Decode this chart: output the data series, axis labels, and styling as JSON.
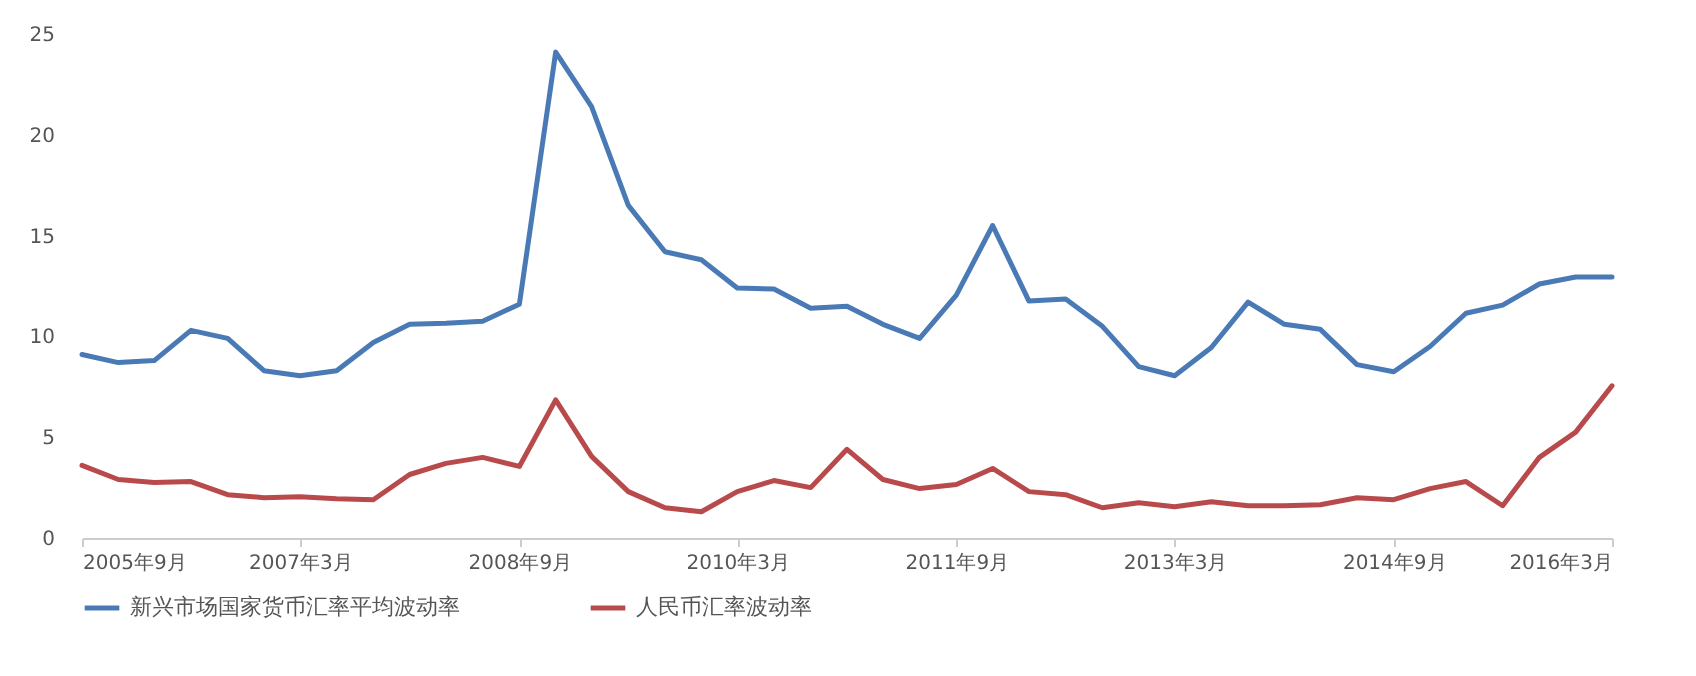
{
  "chart_data": {
    "type": "line",
    "x": [
      "2005-09",
      "2005-12",
      "2006-03",
      "2006-06",
      "2006-09",
      "2006-12",
      "2007-03",
      "2007-06",
      "2007-09",
      "2007-12",
      "2008-03",
      "2008-06",
      "2008-09",
      "2008-12",
      "2009-03",
      "2009-06",
      "2009-09",
      "2009-12",
      "2010-03",
      "2010-06",
      "2010-09",
      "2010-12",
      "2011-03",
      "2011-06",
      "2011-09",
      "2011-12",
      "2012-03",
      "2012-06",
      "2012-09",
      "2012-12",
      "2013-03",
      "2013-06",
      "2013-09",
      "2013-12",
      "2014-03",
      "2014-06",
      "2014-09",
      "2014-12",
      "2015-03",
      "2015-06",
      "2015-09",
      "2015-12",
      "2016-03"
    ],
    "series": [
      {
        "name": "新兴市场国家货币汇率平均波动率",
        "color": "#4a7ab5",
        "values": [
          9.1,
          8.7,
          8.8,
          10.3,
          9.9,
          8.3,
          8.05,
          8.3,
          9.7,
          10.6,
          10.65,
          10.75,
          11.6,
          24.1,
          21.4,
          16.5,
          14.2,
          13.8,
          12.4,
          12.35,
          11.4,
          11.5,
          10.6,
          9.9,
          12.05,
          15.5,
          11.75,
          11.85,
          10.5,
          8.5,
          8.05,
          9.45,
          11.7,
          10.6,
          10.35,
          8.6,
          8.25,
          9.5,
          11.15,
          11.55,
          12.6,
          12.95,
          12.95
        ]
      },
      {
        "name": "人民币汇率波动率",
        "color": "#b94a4c",
        "values": [
          3.6,
          2.9,
          2.75,
          2.8,
          2.15,
          2.0,
          2.05,
          1.95,
          1.9,
          3.15,
          3.7,
          4.0,
          3.55,
          6.85,
          4.05,
          2.3,
          1.5,
          1.3,
          2.3,
          2.85,
          2.5,
          4.4,
          2.9,
          2.45,
          2.65,
          3.45,
          2.3,
          2.15,
          1.5,
          1.75,
          1.55,
          1.8,
          1.6,
          1.6,
          1.65,
          2.0,
          1.9,
          2.45,
          2.8,
          1.6,
          4.0,
          5.25,
          7.55
        ]
      }
    ],
    "xlim": [
      "2005-09",
      "2016-03"
    ],
    "xticks": [
      {
        "value": "2005-09",
        "label": "2005年9月"
      },
      {
        "value": "2007-03",
        "label": "2007年3月"
      },
      {
        "value": "2008-09",
        "label": "2008年9月"
      },
      {
        "value": "2010-03",
        "label": "2010年3月"
      },
      {
        "value": "2011-09",
        "label": "2011年9月"
      },
      {
        "value": "2013-03",
        "label": "2013年3月"
      },
      {
        "value": "2014-09",
        "label": "2014年9月"
      },
      {
        "value": "2016-03",
        "label": "2016年3月"
      }
    ],
    "ylim": [
      0,
      25
    ],
    "yticks": [
      0,
      5,
      10,
      15,
      20,
      25
    ],
    "grid": false,
    "legend": "bottom",
    "marker": "none",
    "line_style": "solid"
  }
}
